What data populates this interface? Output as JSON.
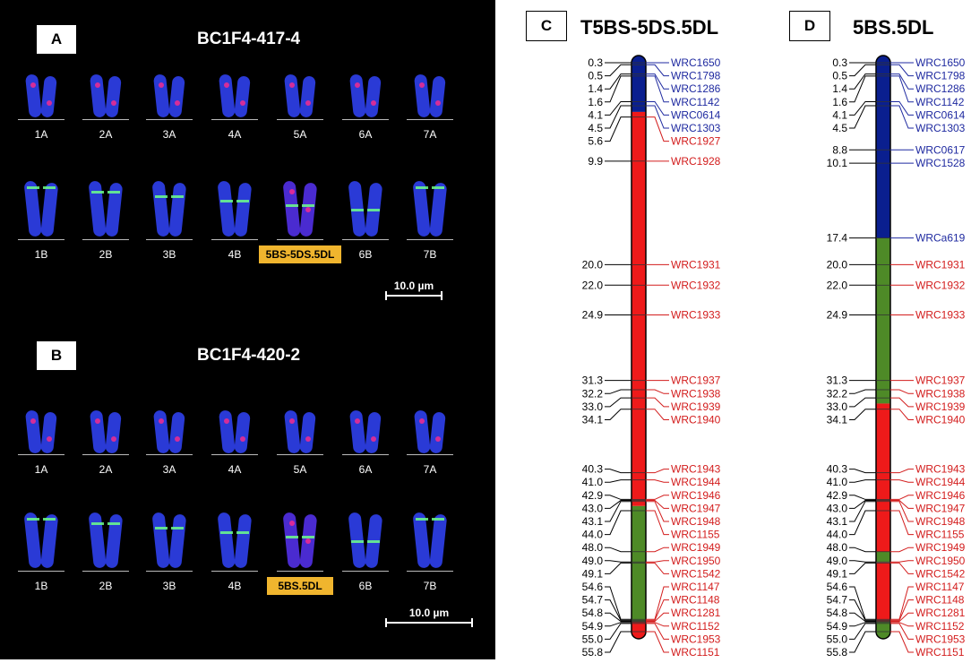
{
  "panel_a": {
    "label": "A",
    "title": "BC1F4-417-4",
    "row1": [
      "1A",
      "2A",
      "3A",
      "4A",
      "5A",
      "6A",
      "7A"
    ],
    "row2": [
      "1B",
      "2B",
      "3B",
      "4B",
      "5BS-5DS.5DL",
      "6B",
      "7B"
    ],
    "scale": "10.0 µm"
  },
  "panel_b": {
    "label": "B",
    "title": "BC1F4-420-2",
    "row1": [
      "1A",
      "2A",
      "3A",
      "4A",
      "5A",
      "6A",
      "7A"
    ],
    "row2": [
      "1B",
      "2B",
      "3B",
      "4B",
      "5BS.5DL",
      "6B",
      "7B"
    ],
    "scale": "10.0 µm"
  },
  "maps": [
    {
      "label": "C",
      "title": "T5BS-5DS.5DL",
      "segments": [
        {
          "from": 0.3,
          "to": 5.1,
          "color": "#0a1f8f"
        },
        {
          "from": 5.1,
          "to": 43.55,
          "color": "#ee1a1a"
        },
        {
          "from": 43.55,
          "to": 54.8,
          "color": "#4e8a27"
        },
        {
          "from": 54.8,
          "to": 55.8,
          "color": "#ee1a1a"
        }
      ],
      "markers": [
        {
          "pos": "0.3",
          "name": "WRC1650",
          "color": "#1f2aa0"
        },
        {
          "pos": "0.5",
          "name": "WRC1798",
          "color": "#1f2aa0"
        },
        {
          "pos": "1.4",
          "name": "WRC1286",
          "color": "#1f2aa0"
        },
        {
          "pos": "1.6",
          "name": "WRC1142",
          "color": "#1f2aa0"
        },
        {
          "pos": "4.1",
          "name": "WRC0614",
          "color": "#1f2aa0"
        },
        {
          "pos": "4.5",
          "name": "WRC1303",
          "color": "#1f2aa0"
        },
        {
          "pos": "5.6",
          "name": "WRC1927",
          "color": "#d31d1d"
        },
        {
          "pos": "9.9",
          "name": "WRC1928",
          "color": "#d31d1d"
        },
        {
          "pos": "20.0",
          "name": "WRC1931",
          "color": "#d31d1d"
        },
        {
          "pos": "22.0",
          "name": "WRC1932",
          "color": "#d31d1d"
        },
        {
          "pos": "24.9",
          "name": "WRC1933",
          "color": "#d31d1d"
        },
        {
          "pos": "31.3",
          "name": "WRC1937",
          "color": "#d31d1d"
        },
        {
          "pos": "32.2",
          "name": "WRC1938",
          "color": "#d31d1d"
        },
        {
          "pos": "33.0",
          "name": "WRC1939",
          "color": "#d31d1d"
        },
        {
          "pos": "34.1",
          "name": "WRC1940",
          "color": "#d31d1d"
        },
        {
          "pos": "40.3",
          "name": "WRC1943",
          "color": "#d31d1d"
        },
        {
          "pos": "41.0",
          "name": "WRC1944",
          "color": "#d31d1d"
        },
        {
          "pos": "42.9",
          "name": "WRC1946",
          "color": "#d31d1d"
        },
        {
          "pos": "43.0",
          "name": "WRC1947",
          "color": "#d31d1d"
        },
        {
          "pos": "43.1",
          "name": "WRC1948",
          "color": "#d31d1d"
        },
        {
          "pos": "44.0",
          "name": "WRC1155",
          "color": "#d31d1d"
        },
        {
          "pos": "48.0",
          "name": "WRC1949",
          "color": "#d31d1d"
        },
        {
          "pos": "49.0",
          "name": "WRC1950",
          "color": "#d31d1d"
        },
        {
          "pos": "49.1",
          "name": "WRC1542",
          "color": "#d31d1d"
        },
        {
          "pos": "54.6",
          "name": "WRC1147",
          "color": "#d31d1d"
        },
        {
          "pos": "54.7",
          "name": "WRC1148",
          "color": "#d31d1d"
        },
        {
          "pos": "54.8",
          "name": "WRC1281",
          "color": "#d31d1d"
        },
        {
          "pos": "54.9",
          "name": "WRC1152",
          "color": "#d31d1d"
        },
        {
          "pos": "55.0",
          "name": "WRC1953",
          "color": "#d31d1d"
        },
        {
          "pos": "55.8",
          "name": "WRC1151",
          "color": "#d31d1d"
        }
      ]
    },
    {
      "label": "D",
      "title": "5BS.5DL",
      "segments": [
        {
          "from": 0.3,
          "to": 17.4,
          "color": "#0a1f8f"
        },
        {
          "from": 17.4,
          "to": 33.55,
          "color": "#4e8a27"
        },
        {
          "from": 33.55,
          "to": 48.0,
          "color": "#ee1a1a"
        },
        {
          "from": 48.0,
          "to": 49.05,
          "color": "#4e8a27"
        },
        {
          "from": 49.05,
          "to": 54.8,
          "color": "#ee1a1a"
        },
        {
          "from": 54.8,
          "to": 55.8,
          "color": "#4e8a27"
        }
      ],
      "markers": [
        {
          "pos": "0.3",
          "name": "WRC1650",
          "color": "#1f2aa0"
        },
        {
          "pos": "0.5",
          "name": "WRC1798",
          "color": "#1f2aa0"
        },
        {
          "pos": "1.4",
          "name": "WRC1286",
          "color": "#1f2aa0"
        },
        {
          "pos": "1.6",
          "name": "WRC1142",
          "color": "#1f2aa0"
        },
        {
          "pos": "4.1",
          "name": "WRC0614",
          "color": "#1f2aa0"
        },
        {
          "pos": "4.5",
          "name": "WRC1303",
          "color": "#1f2aa0"
        },
        {
          "pos": "8.8",
          "name": "WRC0617",
          "color": "#1f2aa0"
        },
        {
          "pos": "10.1",
          "name": "WRC1528",
          "color": "#1f2aa0"
        },
        {
          "pos": "17.4",
          "name": "WRCa619",
          "color": "#1f2aa0"
        },
        {
          "pos": "20.0",
          "name": "WRC1931",
          "color": "#d31d1d"
        },
        {
          "pos": "22.0",
          "name": "WRC1932",
          "color": "#d31d1d"
        },
        {
          "pos": "24.9",
          "name": "WRC1933",
          "color": "#d31d1d"
        },
        {
          "pos": "31.3",
          "name": "WRC1937",
          "color": "#d31d1d"
        },
        {
          "pos": "32.2",
          "name": "WRC1938",
          "color": "#d31d1d"
        },
        {
          "pos": "33.0",
          "name": "WRC1939",
          "color": "#d31d1d"
        },
        {
          "pos": "34.1",
          "name": "WRC1940",
          "color": "#d31d1d"
        },
        {
          "pos": "40.3",
          "name": "WRC1943",
          "color": "#d31d1d"
        },
        {
          "pos": "41.0",
          "name": "WRC1944",
          "color": "#d31d1d"
        },
        {
          "pos": "42.9",
          "name": "WRC1946",
          "color": "#d31d1d"
        },
        {
          "pos": "43.0",
          "name": "WRC1947",
          "color": "#d31d1d"
        },
        {
          "pos": "43.1",
          "name": "WRC1948",
          "color": "#d31d1d"
        },
        {
          "pos": "44.0",
          "name": "WRC1155",
          "color": "#d31d1d"
        },
        {
          "pos": "48.0",
          "name": "WRC1949",
          "color": "#d31d1d"
        },
        {
          "pos": "49.0",
          "name": "WRC1950",
          "color": "#d31d1d"
        },
        {
          "pos": "49.1",
          "name": "WRC1542",
          "color": "#d31d1d"
        },
        {
          "pos": "54.6",
          "name": "WRC1147",
          "color": "#d31d1d"
        },
        {
          "pos": "54.7",
          "name": "WRC1148",
          "color": "#d31d1d"
        },
        {
          "pos": "54.8",
          "name": "WRC1281",
          "color": "#d31d1d"
        },
        {
          "pos": "54.9",
          "name": "WRC1152",
          "color": "#d31d1d"
        },
        {
          "pos": "55.0",
          "name": "WRC1953",
          "color": "#d31d1d"
        },
        {
          "pos": "55.8",
          "name": "WRC1151",
          "color": "#d31d1d"
        }
      ]
    }
  ]
}
